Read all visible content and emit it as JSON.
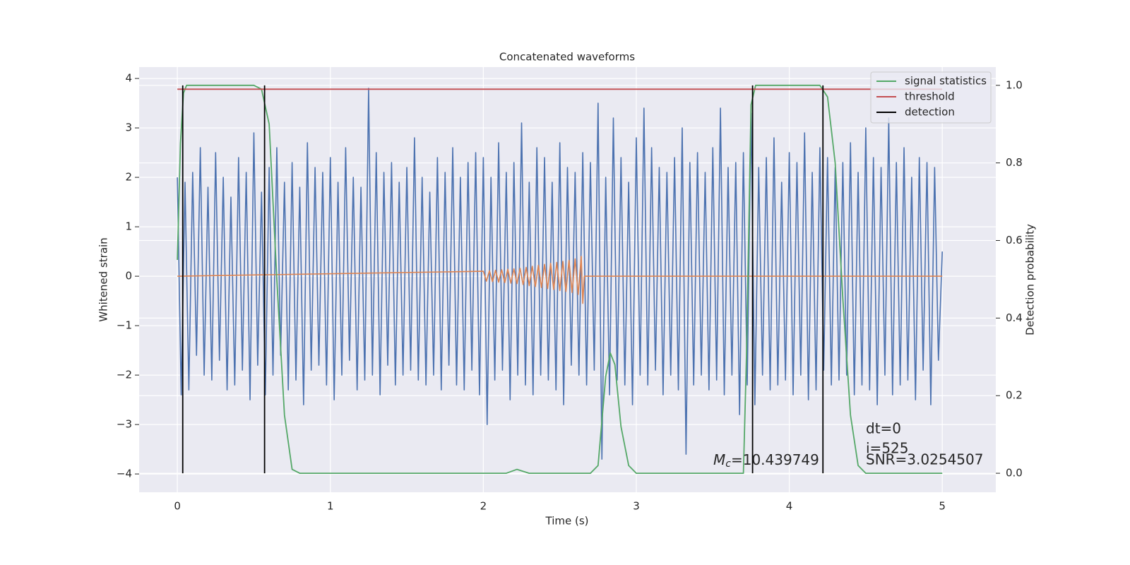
{
  "chart_data": {
    "type": "line",
    "title": "Concatenated waveforms",
    "x_label": "Time (s)",
    "y_label": "Whitened strain",
    "y2_label": "Detection probability",
    "xlim": [
      -0.25,
      5.35
    ],
    "ylim": [
      -4.37,
      4.23
    ],
    "y2lim": [
      -0.049,
      1.047
    ],
    "xticks": [
      0,
      1,
      2,
      3,
      4,
      5
    ],
    "yticks": [
      {
        "value": -4,
        "label": "−4"
      },
      {
        "value": -3,
        "label": "−3"
      },
      {
        "value": -2,
        "label": "−2"
      },
      {
        "value": -1,
        "label": "−1"
      },
      0,
      1,
      2,
      3,
      4
    ],
    "y2ticks": [
      {
        "value": 0,
        "label": "0.0"
      },
      {
        "value": 0.2,
        "label": "0.2"
      },
      {
        "value": 0.4,
        "label": "0.4"
      },
      {
        "value": 0.6,
        "label": "0.6"
      },
      {
        "value": 0.8,
        "label": "0.8"
      },
      {
        "value": 1,
        "label": "1.0"
      }
    ],
    "grid": true,
    "legend_position": "upper right",
    "series": [
      {
        "color": "#4c72b0",
        "x": [
          0,
          0.025,
          0.05,
          0.075,
          0.1,
          0.125,
          0.15,
          0.175,
          0.2,
          0.225,
          0.25,
          0.275,
          0.3,
          0.325,
          0.35,
          0.375,
          0.4,
          0.425,
          0.45,
          0.475,
          0.5,
          0.525,
          0.55,
          0.575,
          0.6,
          0.625,
          0.65,
          0.675,
          0.7,
          0.725,
          0.75,
          0.775,
          0.8,
          0.825,
          0.85,
          0.875,
          0.9,
          0.925,
          0.95,
          0.975,
          1,
          1.025,
          1.05,
          1.075,
          1.1,
          1.125,
          1.15,
          1.175,
          1.2,
          1.225,
          1.25,
          1.275,
          1.3,
          1.325,
          1.35,
          1.375,
          1.4,
          1.425,
          1.45,
          1.475,
          1.5,
          1.525,
          1.55,
          1.575,
          1.6,
          1.625,
          1.65,
          1.675,
          1.7,
          1.725,
          1.75,
          1.775,
          1.8,
          1.825,
          1.85,
          1.875,
          1.9,
          1.925,
          1.95,
          1.975,
          2,
          2.025,
          2.05,
          2.075,
          2.1,
          2.125,
          2.15,
          2.175,
          2.2,
          2.225,
          2.25,
          2.275,
          2.3,
          2.325,
          2.35,
          2.375,
          2.4,
          2.425,
          2.45,
          2.475,
          2.5,
          2.525,
          2.55,
          2.575,
          2.6,
          2.625,
          2.65,
          2.675,
          2.7,
          2.725,
          2.75,
          2.775,
          2.8,
          2.825,
          2.85,
          2.875,
          2.9,
          2.925,
          2.95,
          2.975,
          3,
          3.025,
          3.05,
          3.075,
          3.1,
          3.125,
          3.15,
          3.175,
          3.2,
          3.225,
          3.25,
          3.275,
          3.3,
          3.325,
          3.35,
          3.375,
          3.4,
          3.425,
          3.45,
          3.475,
          3.5,
          3.525,
          3.55,
          3.575,
          3.6,
          3.625,
          3.65,
          3.675,
          3.7,
          3.725,
          3.75,
          3.775,
          3.8,
          3.825,
          3.85,
          3.875,
          3.9,
          3.925,
          3.95,
          3.975,
          4,
          4.025,
          4.05,
          4.075,
          4.1,
          4.125,
          4.15,
          4.175,
          4.2,
          4.225,
          4.25,
          4.275,
          4.3,
          4.325,
          4.35,
          4.375,
          4.4,
          4.425,
          4.45,
          4.475,
          4.5,
          4.525,
          4.55,
          4.575,
          4.6,
          4.625,
          4.65,
          4.675,
          4.7,
          4.725,
          4.75,
          4.775,
          4.8,
          4.825,
          4.85,
          4.875,
          4.9,
          4.925,
          4.95,
          4.975,
          5
        ],
        "values": [
          2.0,
          -2.4,
          1.9,
          -2.3,
          2.1,
          -1.6,
          2.6,
          -2.0,
          1.8,
          -2.1,
          2.5,
          -1.7,
          2.0,
          -2.3,
          1.6,
          -2.2,
          2.4,
          -1.9,
          2.1,
          -2.5,
          2.9,
          -1.8,
          1.7,
          -2.4,
          2.2,
          -2.0,
          2.6,
          -1.6,
          1.9,
          -2.3,
          2.3,
          -2.1,
          1.8,
          -2.6,
          2.7,
          -1.9,
          2.2,
          -1.8,
          2.1,
          -2.2,
          2.4,
          -2.5,
          1.9,
          -2.0,
          2.6,
          -1.7,
          2.0,
          -2.3,
          1.8,
          -2.1,
          3.8,
          -2.0,
          2.5,
          -2.4,
          2.1,
          -1.8,
          2.3,
          -2.2,
          1.9,
          -2.0,
          2.2,
          -1.9,
          2.8,
          -2.1,
          2.0,
          -2.2,
          1.7,
          -2.0,
          2.4,
          -2.3,
          2.1,
          -1.8,
          2.6,
          -2.2,
          2.0,
          -2.3,
          2.3,
          -1.9,
          2.5,
          -2.4,
          2.4,
          -3.0,
          2.0,
          -2.1,
          2.7,
          -1.9,
          2.1,
          -2.5,
          2.3,
          -2.0,
          3.1,
          -2.2,
          1.9,
          -2.4,
          2.6,
          -2.0,
          2.4,
          -2.1,
          1.9,
          -2.3,
          2.7,
          -2.6,
          2.2,
          -1.8,
          2.1,
          -2.0,
          2.5,
          -2.2,
          2.3,
          -1.9,
          3.5,
          -3.7,
          2.0,
          -2.4,
          3.2,
          -2.1,
          2.4,
          -2.2,
          1.9,
          -2.6,
          2.8,
          -2.0,
          3.4,
          -2.2,
          2.6,
          -1.9,
          2.2,
          -2.4,
          2.1,
          -2.0,
          2.4,
          -2.3,
          3.0,
          -3.6,
          2.3,
          -2.2,
          2.5,
          -2.0,
          2.1,
          -2.3,
          2.6,
          -2.1,
          3.4,
          -2.4,
          2.2,
          -2.0,
          2.3,
          -2.8,
          2.5,
          -2.2,
          3.3,
          -2.6,
          2.2,
          -2.0,
          2.4,
          -2.3,
          2.8,
          -2.2,
          1.9,
          -2.1,
          2.5,
          -2.4,
          2.3,
          -2.0,
          2.9,
          -2.5,
          2.1,
          -2.3,
          2.6,
          -1.9,
          2.4,
          -2.2,
          2.2,
          -2.1,
          2.3,
          -2.0,
          2.7,
          -2.4,
          2.1,
          -2.2,
          3.0,
          -2.3,
          2.4,
          -2.6,
          2.2,
          -2.0,
          3.2,
          -2.4,
          2.3,
          -2.2,
          2.6,
          -2.1,
          2.0,
          -2.5,
          2.4,
          -1.9,
          2.3,
          -2.6,
          2.2,
          -1.7,
          0.5
        ]
      },
      {
        "color": "#dd8452",
        "x": [
          0,
          2,
          2.02,
          2.04,
          2.06,
          2.08,
          2.1,
          2.12,
          2.14,
          2.16,
          2.18,
          2.2,
          2.22,
          2.24,
          2.26,
          2.28,
          2.3,
          2.32,
          2.34,
          2.36,
          2.38,
          2.4,
          2.42,
          2.44,
          2.46,
          2.48,
          2.5,
          2.52,
          2.54,
          2.56,
          2.58,
          2.6,
          2.62,
          2.64,
          2.65,
          2.66,
          5
        ],
        "values": [
          0,
          0.1,
          -0.1,
          0.11,
          -0.11,
          0.12,
          -0.12,
          0.13,
          -0.13,
          0.14,
          -0.14,
          0.15,
          -0.15,
          0.16,
          -0.17,
          0.18,
          -0.19,
          0.2,
          -0.21,
          0.22,
          -0.23,
          0.24,
          -0.25,
          0.26,
          -0.27,
          0.28,
          -0.29,
          0.3,
          -0.31,
          0.32,
          -0.33,
          0.35,
          -0.37,
          0.4,
          -0.55,
          0,
          0
        ]
      },
      {
        "name": "signal statistics",
        "color": "#55a868",
        "axis": "y2",
        "x": [
          0,
          0.02,
          0.04,
          0.06,
          0.1,
          0.5,
          0.55,
          0.6,
          0.65,
          0.7,
          0.75,
          0.8,
          1.0,
          2.15,
          2.22,
          2.3,
          2.7,
          2.75,
          2.8,
          2.83,
          2.86,
          2.9,
          2.95,
          3.0,
          3.7,
          3.72,
          3.75,
          3.78,
          3.85,
          4.2,
          4.25,
          4.3,
          4.35,
          4.4,
          4.45,
          4.5,
          5.0
        ],
        "values": [
          0.55,
          0.85,
          0.98,
          1.0,
          1.0,
          1.0,
          0.99,
          0.9,
          0.5,
          0.15,
          0.01,
          0.0,
          0.0,
          0.0,
          0.01,
          0.0,
          0.0,
          0.02,
          0.25,
          0.31,
          0.28,
          0.12,
          0.02,
          0.0,
          0.0,
          0.3,
          0.95,
          1.0,
          1.0,
          1.0,
          0.97,
          0.8,
          0.45,
          0.15,
          0.02,
          0.0,
          0.0
        ]
      },
      {
        "name": "threshold",
        "color": "#c44e52",
        "axis": "y2",
        "x": [
          0,
          5
        ],
        "values": [
          0.99,
          0.99
        ]
      },
      {
        "name": "detection",
        "color": "#000000",
        "axis": "y2",
        "x": [
          0.035,
          0.035,
          0.035,
          0.57,
          0.57,
          0.57,
          3.76,
          3.76,
          3.76,
          4.22,
          4.22
        ],
        "values": [
          0,
          1,
          null,
          0,
          1,
          null,
          0,
          1,
          null,
          0,
          1
        ]
      }
    ],
    "annotations": {
      "mc": {
        "symbol": "M",
        "subscript": "c",
        "text": "=10.439749"
      },
      "dt": "dt=0",
      "i": "i=525",
      "snr": "SNR=3.0254507"
    }
  }
}
